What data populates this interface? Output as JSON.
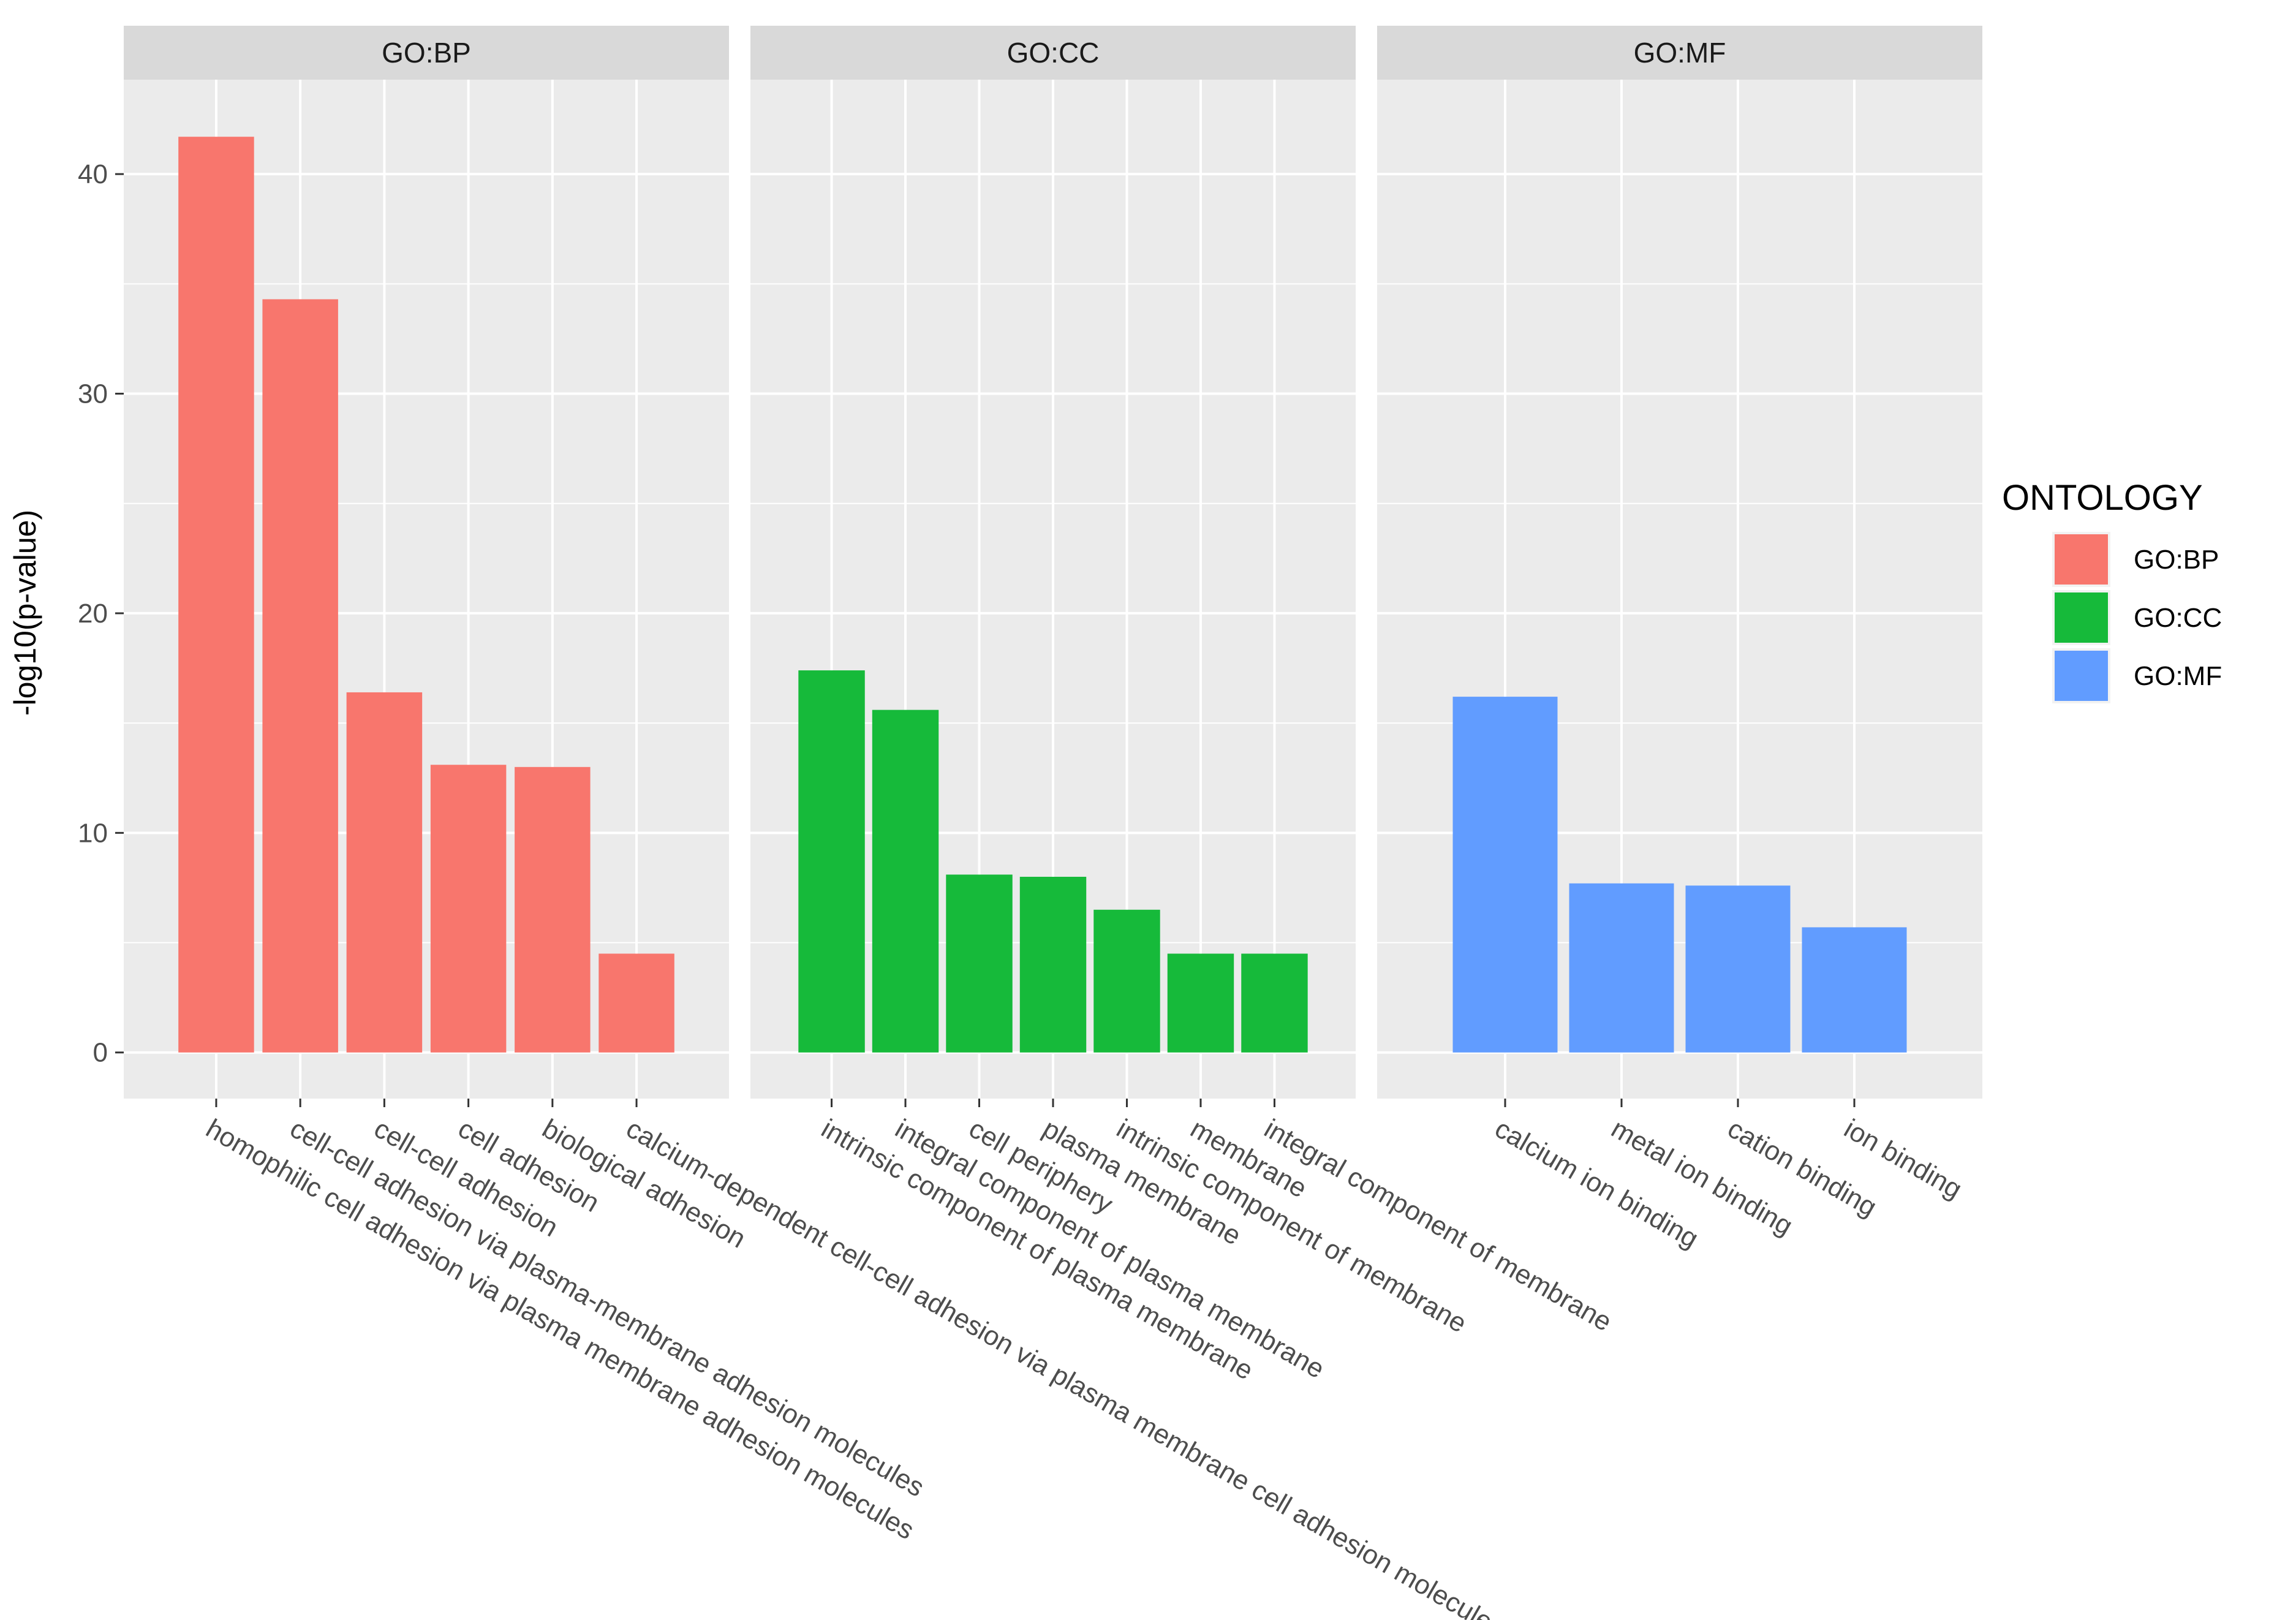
{
  "chart_data": {
    "type": "bar",
    "ylabel": "-log10(p-value)",
    "ylim": [
      -2.1,
      44.3
    ],
    "yticks": [
      0,
      10,
      20,
      30,
      40
    ],
    "legend_title": "ONTOLOGY",
    "legend_position": "right",
    "grid": true,
    "series": [
      {
        "name": "GO:BP",
        "color": "#F8766D"
      },
      {
        "name": "GO:CC",
        "color": "#16BA3A"
      },
      {
        "name": "GO:MF",
        "color": "#619CFF"
      }
    ],
    "panels": [
      {
        "name": "GO:BP",
        "categories": [
          "homophilic cell adhesion via plasma membrane adhesion molecules",
          "cell-cell adhesion via plasma-membrane adhesion molecules",
          "cell-cell adhesion",
          "cell adhesion",
          "biological adhesion",
          "calcium-dependent cell-cell adhesion via plasma membrane cell adhesion molecules"
        ],
        "values": [
          41.7,
          34.3,
          16.4,
          13.1,
          13.0,
          4.5
        ]
      },
      {
        "name": "GO:CC",
        "categories": [
          "intrinsic component of plasma membrane",
          "integral component of plasma membrane",
          "cell periphery",
          "plasma membrane",
          "intrinsic component of membrane",
          "membrane",
          "integral component of membrane"
        ],
        "values": [
          17.4,
          15.6,
          8.1,
          8.0,
          6.5,
          4.5,
          4.5
        ]
      },
      {
        "name": "GO:MF",
        "categories": [
          "calcium ion binding",
          "metal ion binding",
          "cation binding",
          "ion binding"
        ],
        "values": [
          16.2,
          7.7,
          7.6,
          5.7
        ]
      }
    ]
  }
}
